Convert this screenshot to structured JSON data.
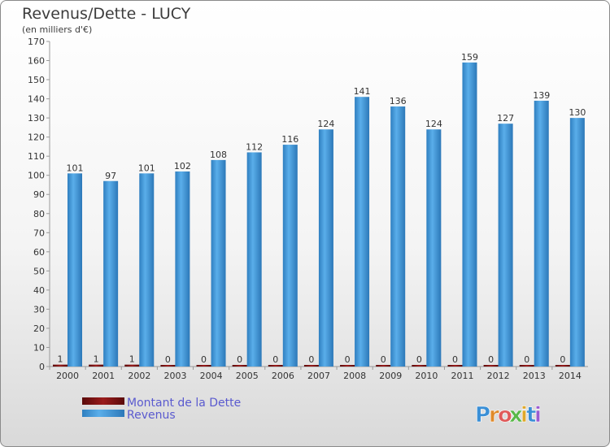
{
  "chart_data": {
    "type": "bar",
    "title": "Revenus/Dette - LUCY",
    "subtitle": "(en milliers d'€)",
    "categories": [
      "2000",
      "2001",
      "2002",
      "2003",
      "2004",
      "2005",
      "2006",
      "2007",
      "2008",
      "2009",
      "2010",
      "2011",
      "2012",
      "2013",
      "2014"
    ],
    "series": [
      {
        "name": "Montant de la Dette",
        "color": "#7a1010",
        "values": [
          1,
          1,
          1,
          0,
          0,
          0,
          0,
          0,
          0,
          0,
          0,
          0,
          0,
          0,
          0
        ]
      },
      {
        "name": "Revenus",
        "color": "#4a9fdf",
        "values": [
          101,
          97,
          101,
          102,
          108,
          112,
          116,
          124,
          141,
          136,
          124,
          159,
          127,
          139,
          130
        ]
      }
    ],
    "ylim": [
      0,
      170
    ],
    "yticks": [
      0,
      10,
      20,
      30,
      40,
      50,
      60,
      70,
      80,
      90,
      100,
      110,
      120,
      130,
      140,
      150,
      160,
      170
    ],
    "grid": false,
    "legend_position": "bottom-left"
  },
  "logo": {
    "text": "Proxiti"
  }
}
